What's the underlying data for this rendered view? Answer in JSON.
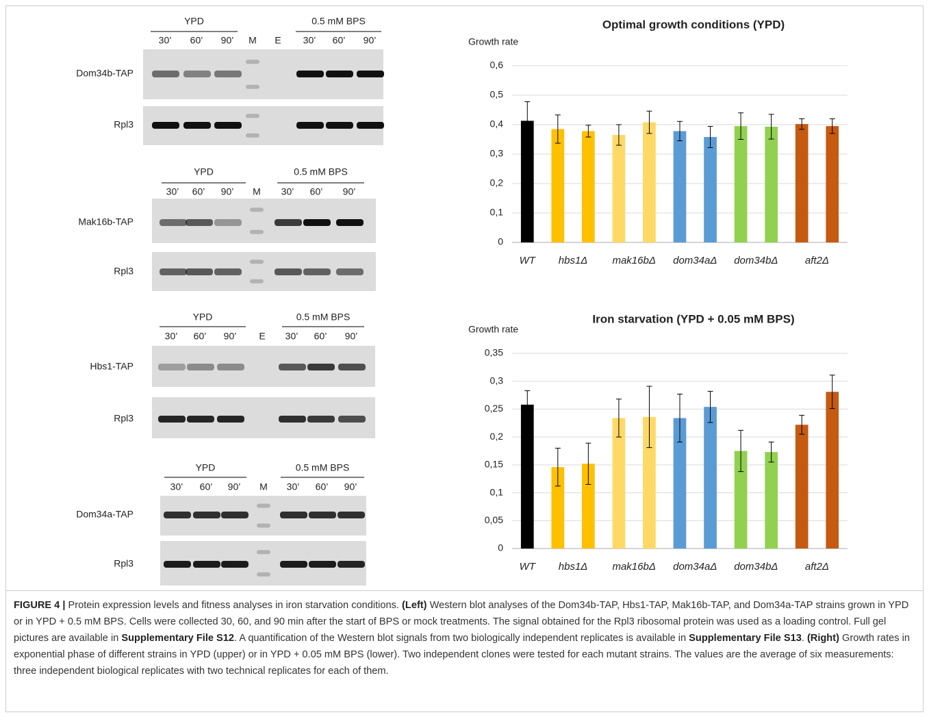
{
  "blots": [
    {
      "groups": [
        "YPD",
        "0.5 mM BPS"
      ],
      "lanes": [
        "30’",
        "60’",
        "90’",
        "M",
        "E",
        "30’",
        "60’",
        "90’"
      ],
      "rows": [
        "Dom34b-TAP",
        "Rpl3"
      ]
    },
    {
      "groups": [
        "YPD",
        "0.5 mM BPS"
      ],
      "lanes": [
        "30’",
        "60’",
        "90’",
        "M",
        "30’",
        "60’",
        "90’"
      ],
      "rows": [
        "Mak16b-TAP",
        "Rpl3"
      ]
    },
    {
      "groups": [
        "YPD",
        "0.5 mM BPS"
      ],
      "lanes": [
        "30’",
        "60’",
        "90’",
        "E",
        "30’",
        "60’",
        "90’"
      ],
      "rows": [
        "Hbs1-TAP",
        "Rpl3"
      ]
    },
    {
      "groups": [
        "YPD",
        "0.5 mM BPS"
      ],
      "lanes": [
        "30’",
        "60’",
        "90’",
        "M",
        "30’",
        "60’",
        "90’"
      ],
      "rows": [
        "Dom34a-TAP",
        "Rpl3"
      ]
    }
  ],
  "chart_data": [
    {
      "type": "bar",
      "title": "Optimal growth conditions (YPD)",
      "y_label": "Growth rate",
      "grid": true,
      "ylim": [
        0,
        0.6
      ],
      "yticks": [
        0,
        {
          "value": 0.1,
          "label": "0,1"
        },
        {
          "value": 0.2,
          "label": "0,2"
        },
        {
          "value": 0.3,
          "label": "0,3"
        },
        {
          "value": 0.4,
          "label": "0,4"
        },
        {
          "value": 0.5,
          "label": "0,5"
        },
        {
          "value": 0.6,
          "label": "0,6"
        }
      ],
      "groups": [
        {
          "name": "WT",
          "color": "#000000",
          "values": [
            0.413
          ],
          "errors": [
            0.065
          ]
        },
        {
          "name": "hbs1Δ",
          "color": "#ffc000",
          "values": [
            0.385,
            0.378
          ],
          "errors": [
            0.048,
            0.02
          ]
        },
        {
          "name": "mak16bΔ",
          "color": "#ffd966",
          "values": [
            0.365,
            0.408
          ],
          "errors": [
            0.035,
            0.038
          ]
        },
        {
          "name": "dom34aΔ",
          "color": "#5b9bd5",
          "values": [
            0.378,
            0.358
          ],
          "errors": [
            0.033,
            0.036
          ]
        },
        {
          "name": "dom34bΔ",
          "color": "#92d050",
          "values": [
            0.395,
            0.393
          ],
          "errors": [
            0.045,
            0.042
          ]
        },
        {
          "name": "aft2Δ",
          "color": "#c55a11",
          "values": [
            0.402,
            0.395
          ],
          "errors": [
            0.018,
            0.025
          ]
        }
      ]
    },
    {
      "type": "bar",
      "title": "Iron starvation (YPD + 0.05 mM BPS)",
      "y_label": "Growth rate",
      "grid": true,
      "ylim": [
        0,
        0.35
      ],
      "yticks": [
        0,
        {
          "value": 0.05,
          "label": "0,05"
        },
        {
          "value": 0.1,
          "label": "0,1"
        },
        {
          "value": 0.15,
          "label": "0,15"
        },
        {
          "value": 0.2,
          "label": "0,2"
        },
        {
          "value": 0.25,
          "label": "0,25"
        },
        {
          "value": 0.3,
          "label": "0,3"
        },
        {
          "value": 0.35,
          "label": "0,35"
        }
      ],
      "groups": [
        {
          "name": "WT",
          "color": "#000000",
          "values": [
            0.258
          ],
          "errors": [
            0.025
          ]
        },
        {
          "name": "hbs1Δ",
          "color": "#ffc000",
          "values": [
            0.146,
            0.152
          ],
          "errors": [
            0.034,
            0.037
          ]
        },
        {
          "name": "mak16bΔ",
          "color": "#ffd966",
          "values": [
            0.234,
            0.236
          ],
          "errors": [
            0.034,
            0.055
          ]
        },
        {
          "name": "dom34aΔ",
          "color": "#5b9bd5",
          "values": [
            0.234,
            0.254
          ],
          "errors": [
            0.043,
            0.028
          ]
        },
        {
          "name": "dom34bΔ",
          "color": "#92d050",
          "values": [
            0.175,
            0.173
          ],
          "errors": [
            0.037,
            0.018
          ]
        },
        {
          "name": "aft2Δ",
          "color": "#c55a11",
          "values": [
            0.222,
            0.281
          ],
          "errors": [
            0.017,
            0.03
          ]
        }
      ]
    }
  ],
  "caption": [
    {
      "text": "FIGURE 4 |",
      "bold": true
    },
    {
      "text": " Protein expression levels and fitness analyses in iron starvation conditions. ",
      "bold": false
    },
    {
      "text": "(Left)",
      "bold": true
    },
    {
      "text": " Western blot analyses of the Dom34b-TAP, Hbs1-TAP, Mak16b-TAP, and Dom34a-TAP strains grown in YPD or in YPD + 0.5 mM BPS. Cells were collected 30, 60, and 90 min after the start of BPS or mock treatments. The signal obtained for the Rpl3 ribosomal protein was used as a loading control. Full gel pictures are available in ",
      "bold": false
    },
    {
      "text": "Supplementary File S12",
      "bold": true
    },
    {
      "text": ". A quantification of the Western blot signals from two biologically independent replicates is available in ",
      "bold": false
    },
    {
      "text": "Supplementary File S13",
      "bold": true
    },
    {
      "text": ". ",
      "bold": false
    },
    {
      "text": "(Right)",
      "bold": true
    },
    {
      "text": " Growth rates in exponential phase of different strains in YPD (upper) or in YPD + 0.05 mM BPS (lower). Two independent clones were tested for each mutant strains. The values are the average of six measurements: three independent biological replicates with two technical replicates for each of them.",
      "bold": false
    }
  ]
}
